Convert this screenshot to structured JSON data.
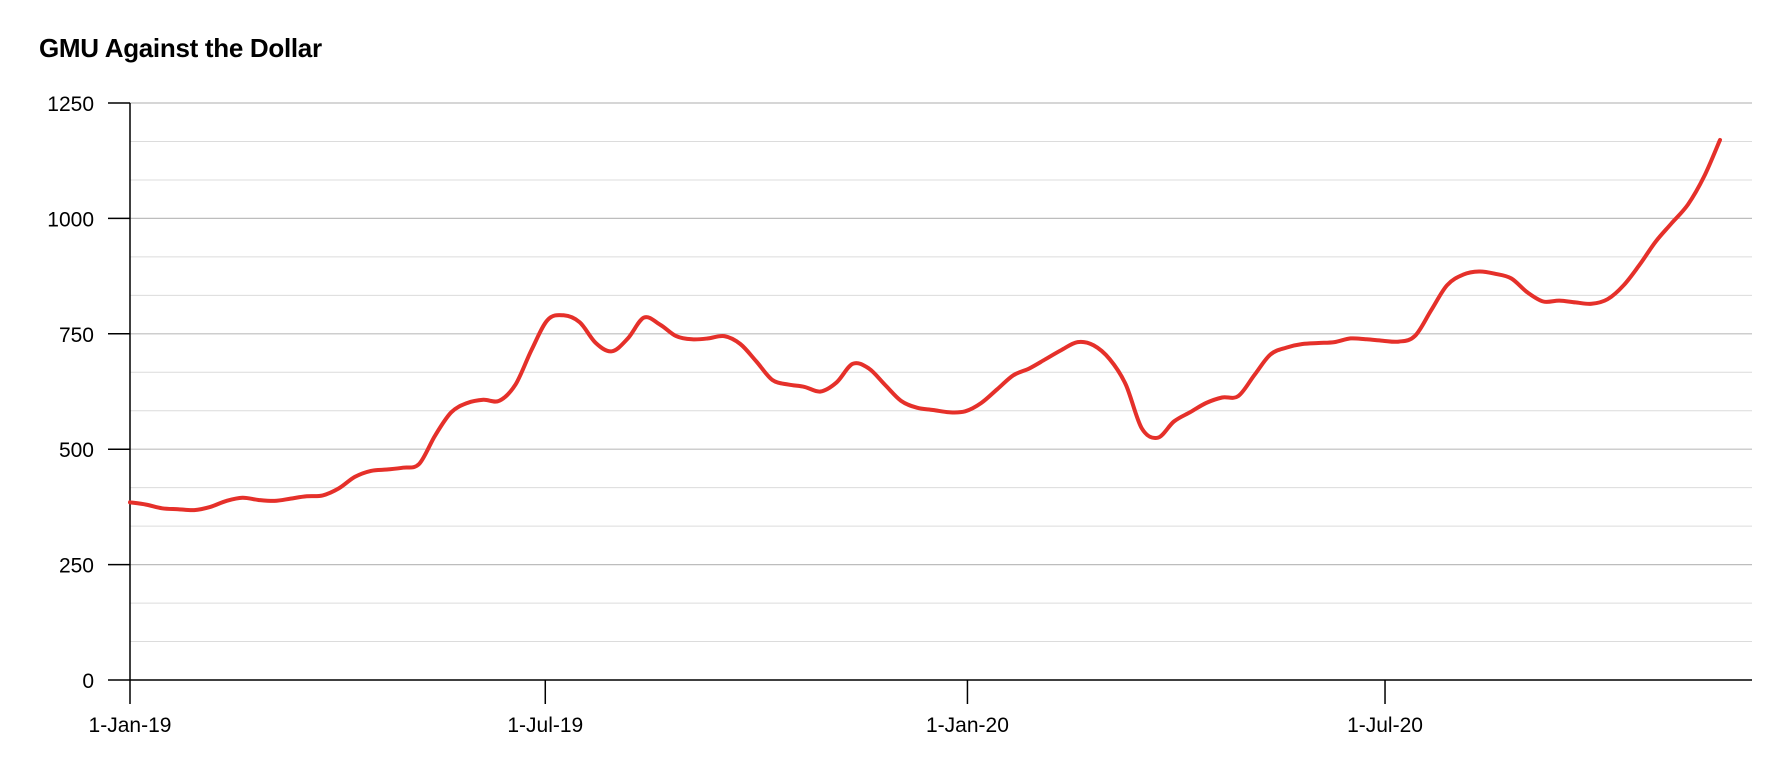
{
  "chart_data": {
    "type": "line",
    "title": "GMU Against the Dollar",
    "xlabel": "",
    "ylabel": "",
    "ylim": [
      0,
      1250
    ],
    "y_ticks": [
      0,
      250,
      500,
      750,
      1000,
      1250
    ],
    "y_tick_labels": [
      "0",
      "250",
      "500",
      "750",
      "1000",
      "1250"
    ],
    "y_minor_step": 83.33,
    "x_range": [
      "2019-01-01",
      "2020-11-24"
    ],
    "x_ticks": [
      "2019-01-01",
      "2019-07-01",
      "2020-01-01",
      "2020-07-01"
    ],
    "x_tick_labels": [
      "1-Jan-19",
      "1-Jul-19",
      "1-Jan-20",
      "1-Jul-20"
    ],
    "grid": true,
    "line_color": "#e5302a",
    "series": [
      {
        "x": [
          "2019-01-01",
          "2019-01-08",
          "2019-01-15",
          "2019-01-22",
          "2019-01-29",
          "2019-02-05",
          "2019-02-12",
          "2019-02-19",
          "2019-02-26",
          "2019-03-05",
          "2019-03-12",
          "2019-03-19",
          "2019-03-26",
          "2019-04-02",
          "2019-04-09",
          "2019-04-16",
          "2019-04-23",
          "2019-04-30",
          "2019-05-07",
          "2019-05-14",
          "2019-05-21",
          "2019-05-28",
          "2019-06-04",
          "2019-06-11",
          "2019-06-18",
          "2019-06-25",
          "2019-07-02",
          "2019-07-09",
          "2019-07-16",
          "2019-07-23",
          "2019-07-30",
          "2019-08-06",
          "2019-08-13",
          "2019-08-20",
          "2019-08-27",
          "2019-09-03",
          "2019-09-10",
          "2019-09-17",
          "2019-09-24",
          "2019-10-01",
          "2019-10-08",
          "2019-10-15",
          "2019-10-22",
          "2019-10-29",
          "2019-11-05",
          "2019-11-12",
          "2019-11-19",
          "2019-11-26",
          "2019-12-03",
          "2019-12-10",
          "2019-12-17",
          "2019-12-24",
          "2019-12-31",
          "2020-01-07",
          "2020-01-14",
          "2020-01-21",
          "2020-01-28",
          "2020-02-04",
          "2020-02-11",
          "2020-02-18",
          "2020-02-25",
          "2020-03-03",
          "2020-03-10",
          "2020-03-17",
          "2020-03-24",
          "2020-03-31",
          "2020-04-07",
          "2020-04-14",
          "2020-04-21",
          "2020-04-28",
          "2020-05-05",
          "2020-05-12",
          "2020-05-19",
          "2020-05-26",
          "2020-06-02",
          "2020-06-09",
          "2020-06-16",
          "2020-06-23",
          "2020-06-30",
          "2020-07-07",
          "2020-07-14",
          "2020-07-21",
          "2020-07-28",
          "2020-08-04",
          "2020-08-11",
          "2020-08-18",
          "2020-08-25",
          "2020-09-01",
          "2020-09-08",
          "2020-09-15",
          "2020-09-22",
          "2020-09-29",
          "2020-10-06",
          "2020-10-13",
          "2020-10-20",
          "2020-10-27",
          "2020-11-03",
          "2020-11-10",
          "2020-11-17",
          "2020-11-24"
        ],
        "values": [
          385,
          380,
          372,
          370,
          368,
          375,
          388,
          395,
          390,
          388,
          393,
          398,
          400,
          415,
          440,
          453,
          456,
          460,
          468,
          530,
          580,
          600,
          607,
          605,
          640,
          715,
          780,
          790,
          775,
          730,
          712,
          740,
          785,
          770,
          745,
          738,
          740,
          745,
          728,
          690,
          650,
          640,
          635,
          625,
          645,
          685,
          675,
          640,
          605,
          590,
          585,
          580,
          582,
          600,
          630,
          660,
          675,
          695,
          715,
          732,
          725,
          695,
          640,
          545,
          525,
          560,
          580,
          600,
          612,
          615,
          660,
          705,
          720,
          728,
          730,
          732,
          740,
          738,
          735,
          733,
          745,
          800,
          855,
          878,
          885,
          880,
          870,
          840,
          820,
          822,
          818,
          815,
          825,
          855,
          900,
          950,
          990,
          1030,
          1090,
          1170
        ]
      }
    ]
  }
}
